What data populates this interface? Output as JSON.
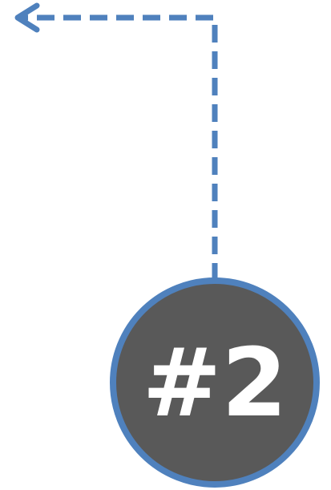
{
  "badge": {
    "label": "#2"
  },
  "colors": {
    "accent": "#4f81bd",
    "badge_fill": "#595959",
    "badge_text": "#ffffff"
  },
  "icons": {
    "arrowhead": "arrow-left-icon"
  }
}
